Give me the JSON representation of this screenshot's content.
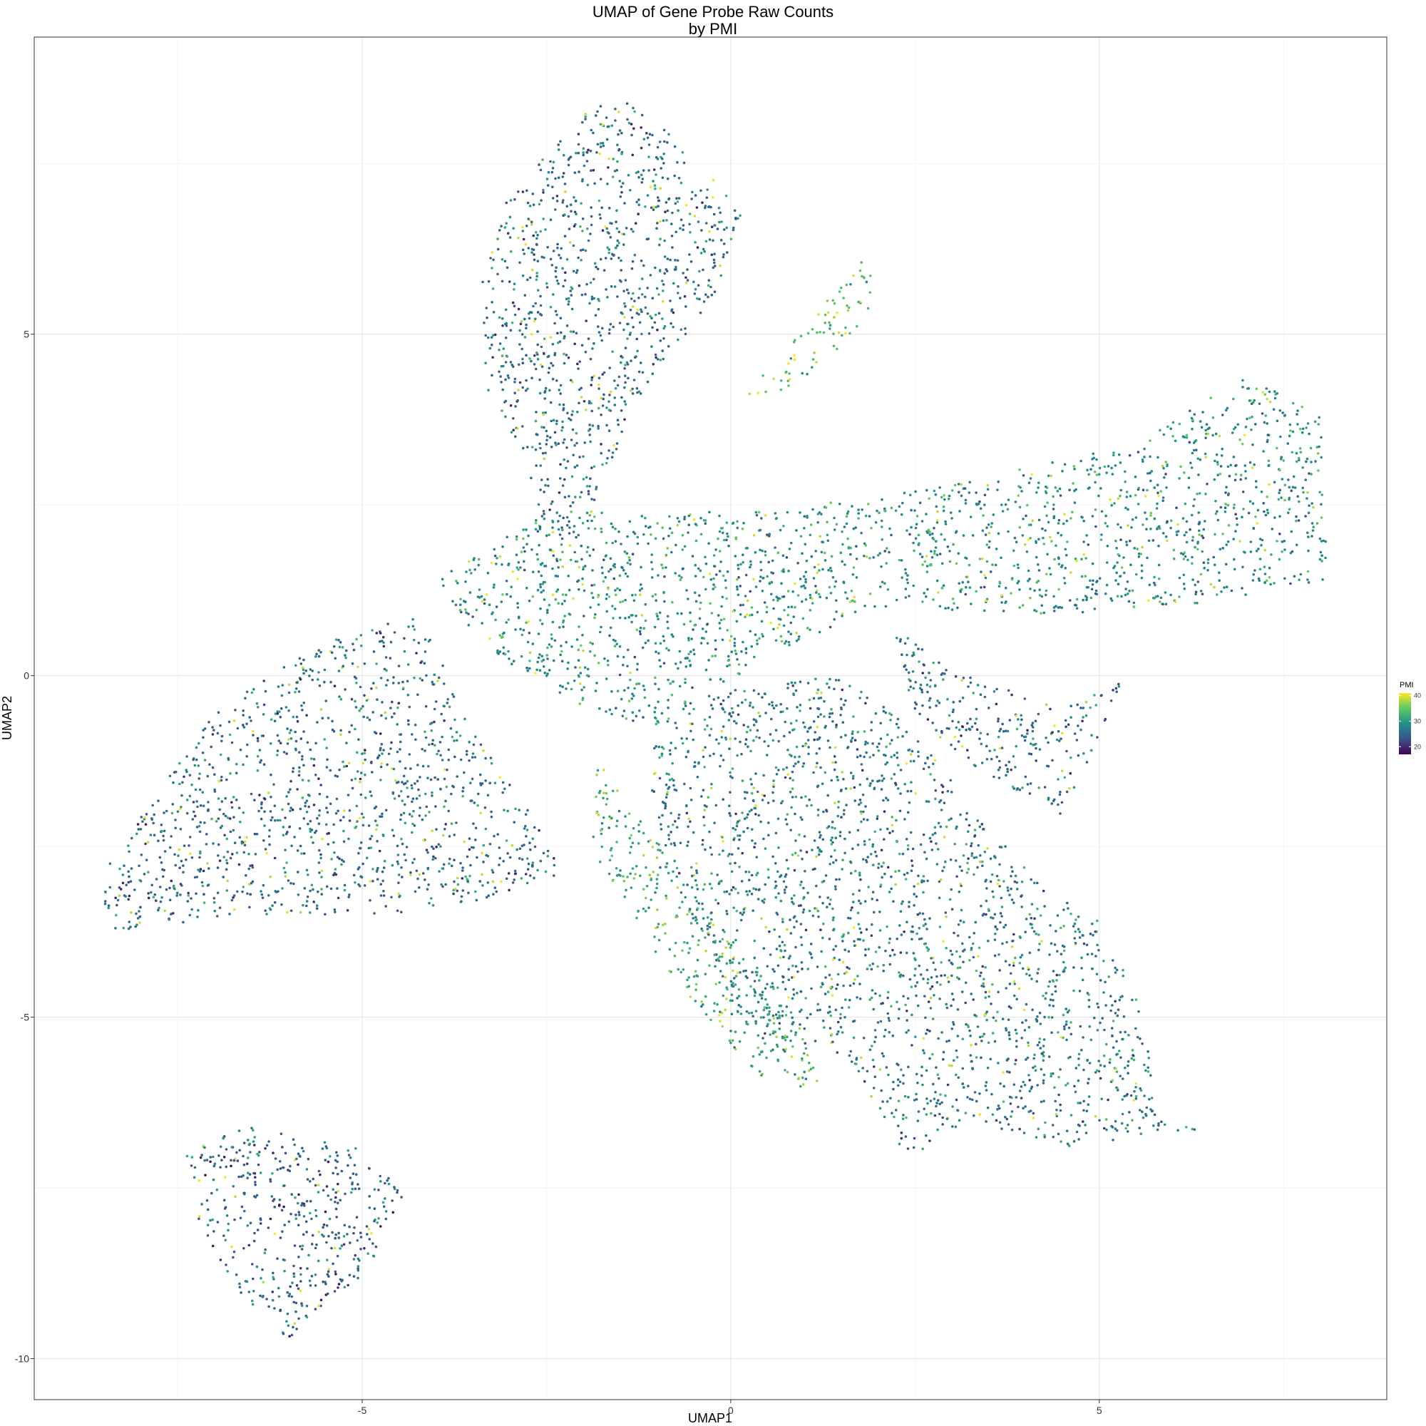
{
  "chart_data": {
    "type": "scatter",
    "title": "UMAP of Gene Probe Raw Counts",
    "subtitle": "by PMI",
    "xlabel": "UMAP1",
    "ylabel": "UMAP2",
    "xlim": [
      -9.45,
      8.9
    ],
    "ylim": [
      -10.6,
      9.35
    ],
    "x_ticks": [
      -5,
      0,
      5
    ],
    "x_tick_labels": [
      "-5",
      "0",
      "5"
    ],
    "y_ticks": [
      -10,
      -5,
      0,
      5
    ],
    "y_tick_labels": [
      "-10",
      "-5",
      "0",
      "5"
    ],
    "grid": true,
    "legend": {
      "title": "PMI",
      "position": "right",
      "range": [
        17,
        41
      ],
      "ticks": [
        20,
        30,
        40
      ],
      "tick_labels": [
        "20",
        "30",
        "40"
      ],
      "colormap": [
        "#440154",
        "#3b528b",
        "#21908c",
        "#5dc863",
        "#fde725"
      ]
    },
    "regions": [
      {
        "points": [
          [
            -2.3,
            7.9
          ],
          [
            -2.0,
            8.3
          ],
          [
            -1.4,
            8.4
          ],
          [
            -0.6,
            7.9
          ],
          [
            0.2,
            6.7
          ],
          [
            -0.2,
            5.6
          ],
          [
            -1.3,
            4.0
          ],
          [
            -2.0,
            2.0
          ],
          [
            -2.5,
            2.0
          ],
          [
            -2.8,
            3.2
          ],
          [
            -3.3,
            4.2
          ],
          [
            -3.4,
            5.6
          ],
          [
            -3.1,
            7.0
          ]
        ],
        "pmi": 25
      },
      {
        "points": [
          [
            -4.0,
            1.4
          ],
          [
            -2.5,
            2.4
          ],
          [
            0.5,
            2.4
          ],
          [
            3.0,
            2.8
          ],
          [
            5.5,
            3.4
          ],
          [
            7.0,
            4.4
          ],
          [
            8.0,
            3.8
          ],
          [
            8.1,
            1.4
          ],
          [
            7.0,
            1.1
          ],
          [
            4.5,
            0.9
          ],
          [
            2.0,
            1.0
          ],
          [
            0.5,
            0.3
          ],
          [
            -1.0,
            -0.8
          ],
          [
            -2.5,
            -0.3
          ],
          [
            -3.5,
            0.6
          ]
        ],
        "pmi": 28
      },
      {
        "points": [
          [
            -4.2,
            0.9
          ],
          [
            -5.5,
            0.5
          ],
          [
            -7.0,
            -0.5
          ],
          [
            -8.6,
            -3.0
          ],
          [
            -8.4,
            -3.8
          ],
          [
            -6.8,
            -3.5
          ],
          [
            -4.5,
            -3.5
          ],
          [
            -3.0,
            -3.2
          ],
          [
            -2.3,
            -2.9
          ],
          [
            -2.6,
            -2.2
          ],
          [
            -3.5,
            -0.8
          ]
        ],
        "pmi": 25
      },
      {
        "points": [
          [
            -1.0,
            -0.5
          ],
          [
            0.0,
            -0.2
          ],
          [
            1.5,
            0.0
          ],
          [
            2.5,
            -0.8
          ],
          [
            3.5,
            -2.3
          ],
          [
            5.0,
            -3.6
          ],
          [
            5.6,
            -4.9
          ],
          [
            5.8,
            -6.7
          ],
          [
            4.6,
            -6.9
          ],
          [
            3.2,
            -6.5
          ],
          [
            2.4,
            -7.1
          ],
          [
            1.6,
            -5.6
          ],
          [
            0.2,
            -5.2
          ],
          [
            -0.6,
            -3.5
          ],
          [
            -1.1,
            -1.8
          ]
        ],
        "pmi": 26
      },
      {
        "points": [
          [
            -1.8,
            -1.2
          ],
          [
            -1.1,
            -2.3
          ],
          [
            0.4,
            -4.3
          ],
          [
            1.4,
            -5.8
          ],
          [
            1.0,
            -6.2
          ],
          [
            0.3,
            -5.8
          ],
          [
            -1.1,
            -4.0
          ],
          [
            -1.9,
            -2.5
          ]
        ],
        "pmi": 31
      },
      {
        "points": [
          [
            2.2,
            0.7
          ],
          [
            3.0,
            0.1
          ],
          [
            4.5,
            -0.5
          ],
          [
            5.3,
            -0.1
          ],
          [
            4.8,
            -1.5
          ],
          [
            4.6,
            -2.1
          ],
          [
            3.5,
            -1.5
          ],
          [
            2.5,
            -0.6
          ]
        ],
        "pmi": 25
      },
      {
        "points": [
          [
            -7.4,
            -7.0
          ],
          [
            -6.6,
            -6.6
          ],
          [
            -5.2,
            -6.8
          ],
          [
            -4.4,
            -7.5
          ],
          [
            -4.8,
            -8.6
          ],
          [
            -6.0,
            -9.7
          ],
          [
            -6.6,
            -9.2
          ],
          [
            -7.3,
            -7.8
          ]
        ],
        "pmi": 24
      },
      {
        "points": [
          [
            0.2,
            4.1
          ],
          [
            0.9,
            5.0
          ],
          [
            1.4,
            5.6
          ],
          [
            2.1,
            6.6
          ],
          [
            1.9,
            5.9
          ],
          [
            1.9,
            5.3
          ],
          [
            1.3,
            4.6
          ],
          [
            0.5,
            4.0
          ]
        ],
        "pmi": 34
      },
      {
        "points": [
          [
            5.6,
            -6.6
          ],
          [
            6.4,
            -6.7
          ],
          [
            7.1,
            -6.9
          ],
          [
            6.5,
            -6.7
          ],
          [
            5.8,
            -6.5
          ]
        ],
        "pmi": 26
      }
    ]
  }
}
